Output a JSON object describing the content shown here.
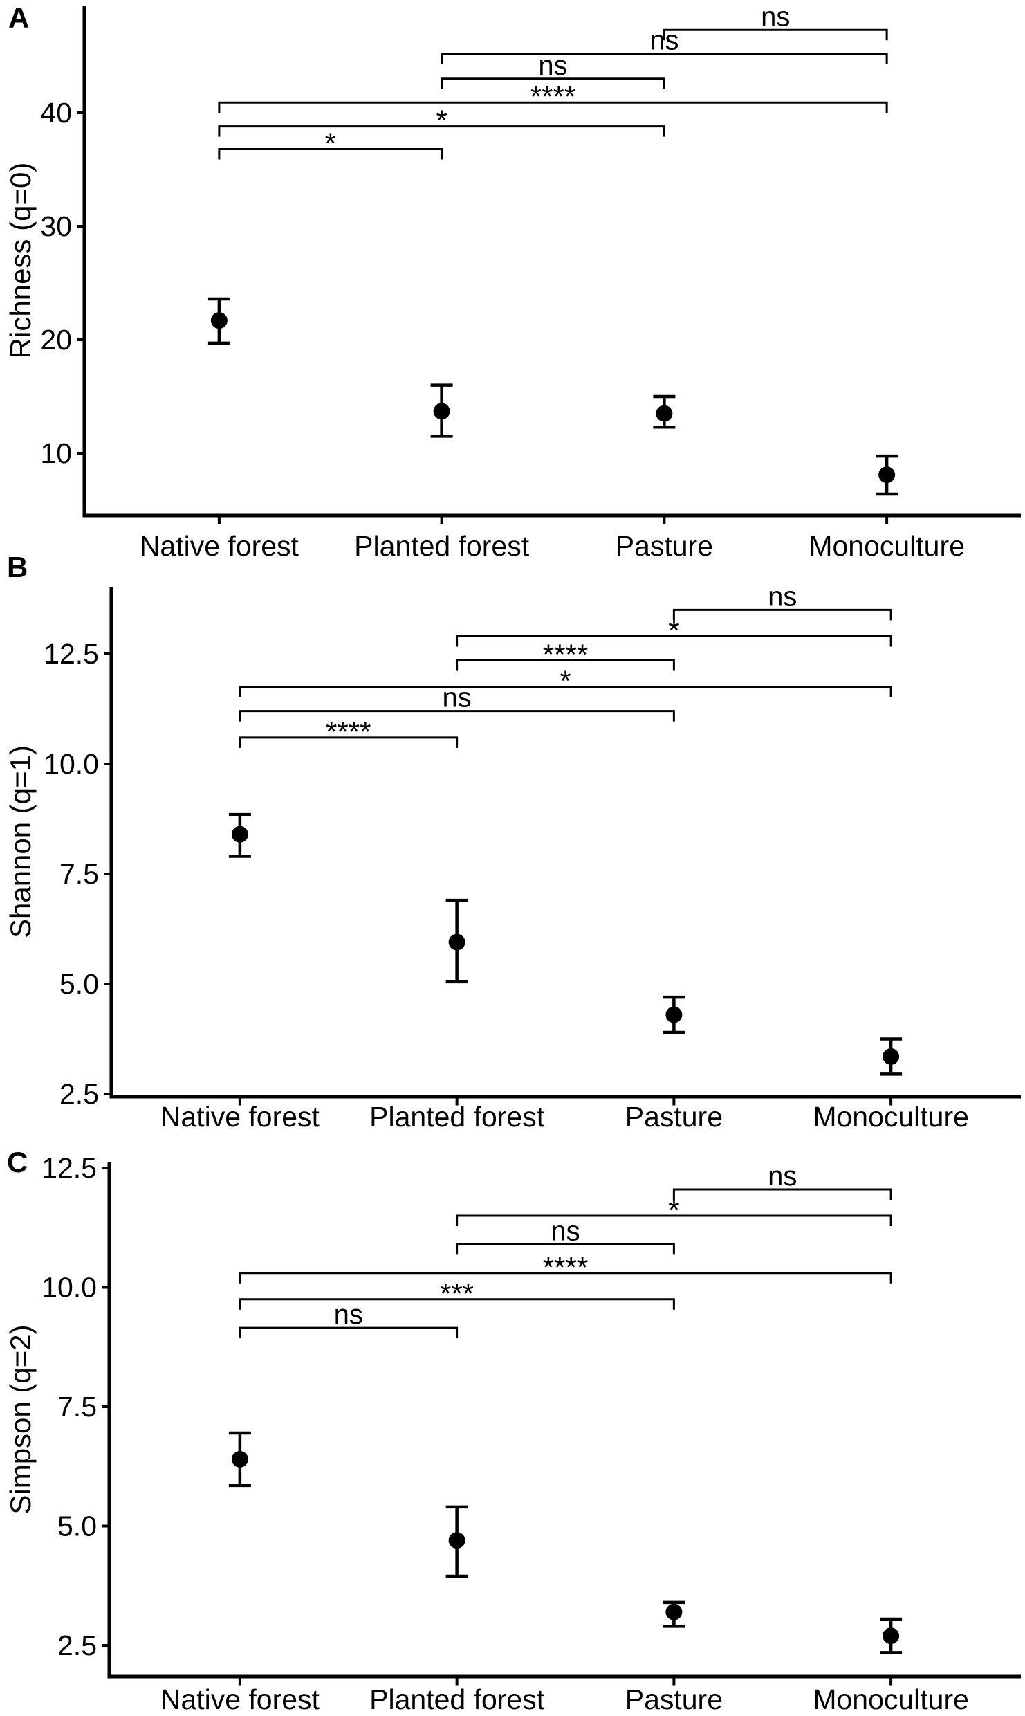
{
  "figure": {
    "background": "#ffffff",
    "ink_color": "#000000",
    "categories": [
      "Native forest",
      "Planted forest",
      "Pasture",
      "Monoculture"
    ]
  },
  "chart_data": [
    {
      "type": "scatter",
      "panel_label": "A",
      "ylabel": "Richness (q=0)",
      "xlabel": "",
      "error_bars": true,
      "grid": false,
      "ylim": [
        4.5,
        49.5
      ],
      "yticks": [
        10,
        20,
        30,
        40
      ],
      "ytick_labels": [
        "10",
        "20",
        "30",
        "40"
      ],
      "categories": [
        "Native forest",
        "Planted forest",
        "Pasture",
        "Monoculture"
      ],
      "points": [
        {
          "category": "Native forest",
          "mean": 21.7,
          "ci_low": 19.7,
          "ci_high": 23.6
        },
        {
          "category": "Planted forest",
          "mean": 13.7,
          "ci_low": 11.5,
          "ci_high": 16.0
        },
        {
          "category": "Pasture",
          "mean": 13.5,
          "ci_low": 12.3,
          "ci_high": 15.0
        },
        {
          "category": "Monoculture",
          "mean": 8.1,
          "ci_low": 6.4,
          "ci_high": 9.75
        }
      ],
      "comparisons": [
        {
          "group1": "Pasture",
          "group2": "Monoculture",
          "label": "ns",
          "height": 47.3
        },
        {
          "group1": "Planted forest",
          "group2": "Monoculture",
          "label": "ns",
          "height": 45.2
        },
        {
          "group1": "Planted forest",
          "group2": "Pasture",
          "label": "ns",
          "height": 43.0
        },
        {
          "group1": "Native forest",
          "group2": "Monoculture",
          "label": "****",
          "height": 40.9
        },
        {
          "group1": "Native forest",
          "group2": "Pasture",
          "label": "*",
          "height": 38.8
        },
        {
          "group1": "Native forest",
          "group2": "Planted forest",
          "label": "*",
          "height": 36.8
        }
      ]
    },
    {
      "type": "scatter",
      "panel_label": "B",
      "ylabel": "Shannon (q=1)",
      "xlabel": "",
      "error_bars": true,
      "grid": false,
      "ylim": [
        2.45,
        14.0
      ],
      "yticks": [
        2.5,
        5.0,
        7.5,
        10.0,
        12.5
      ],
      "ytick_labels": [
        "2.5",
        "5.0",
        "7.5",
        "10.0",
        "12.5"
      ],
      "categories": [
        "Native forest",
        "Planted forest",
        "Pasture",
        "Monoculture"
      ],
      "points": [
        {
          "category": "Native forest",
          "mean": 8.4,
          "ci_low": 7.9,
          "ci_high": 8.85
        },
        {
          "category": "Planted forest",
          "mean": 5.95,
          "ci_low": 5.05,
          "ci_high": 6.9
        },
        {
          "category": "Pasture",
          "mean": 4.3,
          "ci_low": 3.9,
          "ci_high": 4.7
        },
        {
          "category": "Monoculture",
          "mean": 3.35,
          "ci_low": 2.95,
          "ci_high": 3.75
        }
      ],
      "comparisons": [
        {
          "group1": "Pasture",
          "group2": "Monoculture",
          "label": "ns",
          "height": 13.5
        },
        {
          "group1": "Planted forest",
          "group2": "Monoculture",
          "label": "*",
          "height": 12.9
        },
        {
          "group1": "Planted forest",
          "group2": "Pasture",
          "label": "****",
          "height": 12.35
        },
        {
          "group1": "Native forest",
          "group2": "Monoculture",
          "label": "*",
          "height": 11.75
        },
        {
          "group1": "Native forest",
          "group2": "Pasture",
          "label": "ns",
          "height": 11.2
        },
        {
          "group1": "Native forest",
          "group2": "Planted forest",
          "label": "****",
          "height": 10.6
        }
      ]
    },
    {
      "type": "scatter",
      "panel_label": "C",
      "ylabel": "Simpson (q=2)",
      "xlabel": "",
      "error_bars": true,
      "grid": false,
      "ylim": [
        1.85,
        12.6
      ],
      "yticks": [
        2.5,
        5.0,
        7.5,
        10.0,
        12.5
      ],
      "ytick_labels": [
        "2.5",
        "5.0",
        "7.5",
        "10.0",
        "12.5"
      ],
      "categories": [
        "Native forest",
        "Planted forest",
        "Pasture",
        "Monoculture"
      ],
      "points": [
        {
          "category": "Native forest",
          "mean": 6.4,
          "ci_low": 5.85,
          "ci_high": 6.95
        },
        {
          "category": "Planted forest",
          "mean": 4.7,
          "ci_low": 3.95,
          "ci_high": 5.4
        },
        {
          "category": "Pasture",
          "mean": 3.2,
          "ci_low": 2.9,
          "ci_high": 3.4
        },
        {
          "category": "Monoculture",
          "mean": 2.7,
          "ci_low": 2.35,
          "ci_high": 3.05
        }
      ],
      "comparisons": [
        {
          "group1": "Pasture",
          "group2": "Monoculture",
          "label": "ns",
          "height": 12.05
        },
        {
          "group1": "Planted forest",
          "group2": "Monoculture",
          "label": "*",
          "height": 11.5
        },
        {
          "group1": "Planted forest",
          "group2": "Pasture",
          "label": "ns",
          "height": 10.9
        },
        {
          "group1": "Native forest",
          "group2": "Monoculture",
          "label": "****",
          "height": 10.3
        },
        {
          "group1": "Native forest",
          "group2": "Pasture",
          "label": "***",
          "height": 9.75
        },
        {
          "group1": "Native forest",
          "group2": "Planted forest",
          "label": "ns",
          "height": 9.15
        }
      ]
    }
  ]
}
